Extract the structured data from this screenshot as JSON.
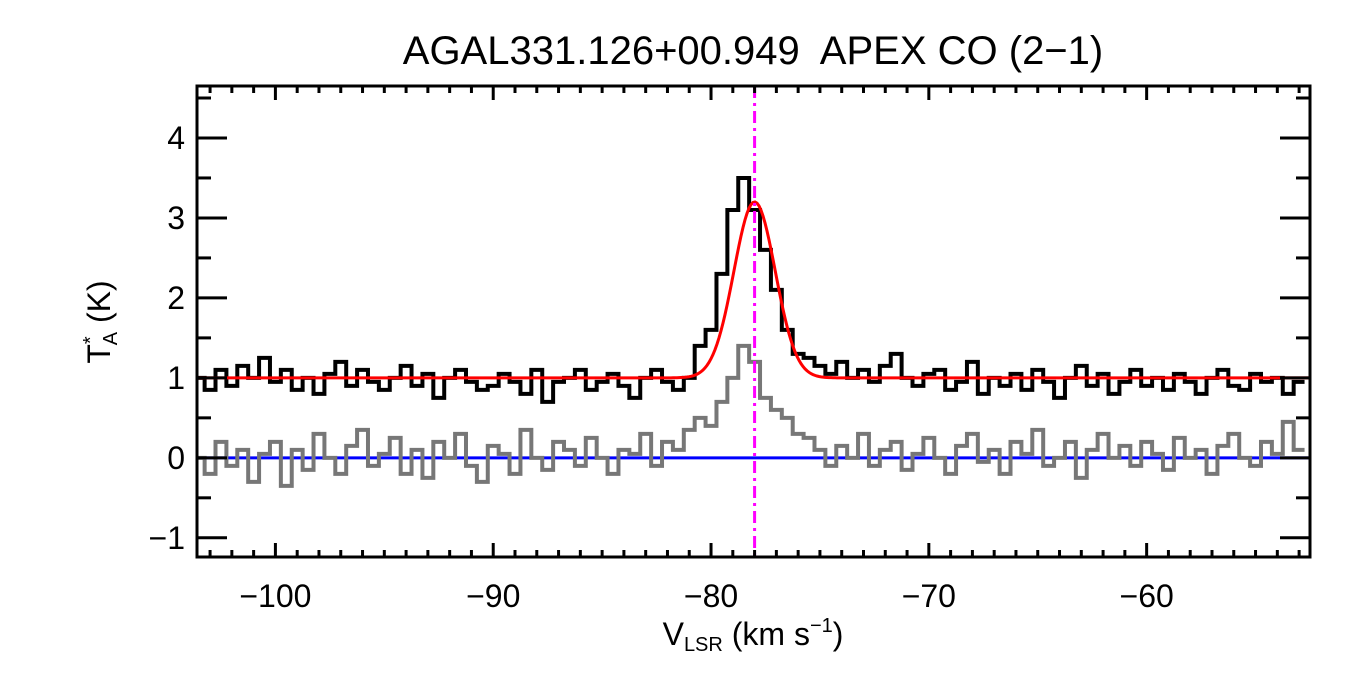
{
  "chart_data": {
    "type": "line",
    "title": "AGAL331.126+00.949  APEX CO (2−1)",
    "xlabel": {
      "main": "V",
      "sub": "LSR",
      "rest": " (km s",
      "sup": "−1",
      "end": ")"
    },
    "ylabel": {
      "main": "T",
      "sup": "*",
      "sub": "A",
      "rest": " (K)"
    },
    "xlim": [
      -103.6,
      -52.5
    ],
    "ylim": [
      -1.24,
      4.65
    ],
    "xticks": [
      -100,
      -90,
      -80,
      -70,
      -60
    ],
    "xtick_labels": [
      "−100",
      "−90",
      "−80",
      "−70",
      "−60"
    ],
    "yticks": [
      -1,
      0,
      1,
      2,
      3,
      4
    ],
    "ytick_labels": [
      "−1",
      "0",
      "1",
      "2",
      "3",
      "4"
    ],
    "grid": false,
    "channel_start": -103.5,
    "channel_width": 0.5,
    "series": [
      {
        "color": "#000000",
        "style": "histogram",
        "values": [
          1.0,
          0.85,
          1.1,
          0.9,
          1.15,
          1.0,
          1.25,
          0.95,
          1.1,
          0.85,
          1.0,
          0.8,
          1.05,
          1.2,
          0.9,
          1.1,
          0.95,
          0.85,
          1.0,
          1.15,
          0.9,
          1.05,
          0.75,
          1.0,
          1.1,
          0.95,
          0.85,
          0.9,
          1.05,
          0.95,
          0.8,
          1.1,
          0.7,
          0.95,
          1.0,
          1.1,
          0.85,
          0.95,
          1.05,
          0.9,
          0.75,
          1.0,
          1.1,
          0.95,
          0.85,
          1.0,
          1.4,
          1.6,
          2.3,
          3.1,
          3.5,
          3.1,
          2.6,
          2.1,
          1.6,
          1.3,
          1.25,
          1.15,
          1.05,
          1.2,
          1.0,
          1.1,
          0.95,
          1.15,
          1.3,
          1.0,
          0.9,
          1.05,
          1.1,
          0.85,
          0.95,
          1.2,
          0.8,
          1.0,
          0.9,
          1.05,
          0.85,
          1.1,
          0.95,
          0.75,
          1.0,
          1.15,
          0.9,
          1.05,
          0.8,
          0.95,
          1.1,
          0.9,
          1.0,
          0.85,
          1.05,
          0.95,
          0.8,
          1.0,
          1.1,
          0.9,
          0.85,
          1.05,
          0.95,
          1.0,
          0.8,
          0.95
        ]
      },
      {
        "color": "#777777",
        "style": "histogram",
        "values": [
          0.0,
          -0.2,
          0.2,
          -0.1,
          0.1,
          -0.3,
          0.05,
          0.2,
          -0.35,
          0.1,
          -0.15,
          0.3,
          0.0,
          -0.2,
          0.15,
          0.35,
          -0.1,
          0.05,
          0.25,
          -0.2,
          0.1,
          -0.25,
          0.2,
          0.0,
          0.3,
          -0.1,
          -0.3,
          0.15,
          0.05,
          -0.2,
          0.35,
          0.0,
          -0.15,
          0.2,
          0.1,
          -0.1,
          0.25,
          0.0,
          -0.2,
          0.1,
          0.05,
          0.3,
          -0.1,
          0.2,
          0.1,
          0.35,
          0.5,
          0.4,
          0.7,
          1.0,
          1.4,
          1.2,
          0.75,
          0.6,
          0.5,
          0.3,
          0.25,
          0.1,
          -0.1,
          0.15,
          0.0,
          0.3,
          -0.1,
          0.1,
          0.2,
          -0.15,
          0.05,
          0.25,
          0.0,
          -0.2,
          0.15,
          0.3,
          -0.05,
          0.1,
          -0.2,
          0.2,
          0.05,
          0.35,
          -0.1,
          0.0,
          0.2,
          -0.25,
          0.1,
          0.3,
          0.0,
          0.15,
          -0.1,
          0.2,
          0.05,
          -0.15,
          0.25,
          0.0,
          0.1,
          -0.2,
          0.15,
          0.3,
          0.0,
          -0.1,
          0.2,
          0.05,
          0.45,
          0.1
        ]
      }
    ],
    "gaussian_fit": {
      "color": "#ff0000",
      "baseline": 1.0,
      "amplitude": 2.2,
      "center": -78.0,
      "sigma": 0.95
    },
    "zero_line": {
      "color": "#0000ff",
      "y": 0
    },
    "velocity_marker": {
      "color": "#ff00ff",
      "x": -78.0,
      "style": "dash-dot"
    }
  }
}
